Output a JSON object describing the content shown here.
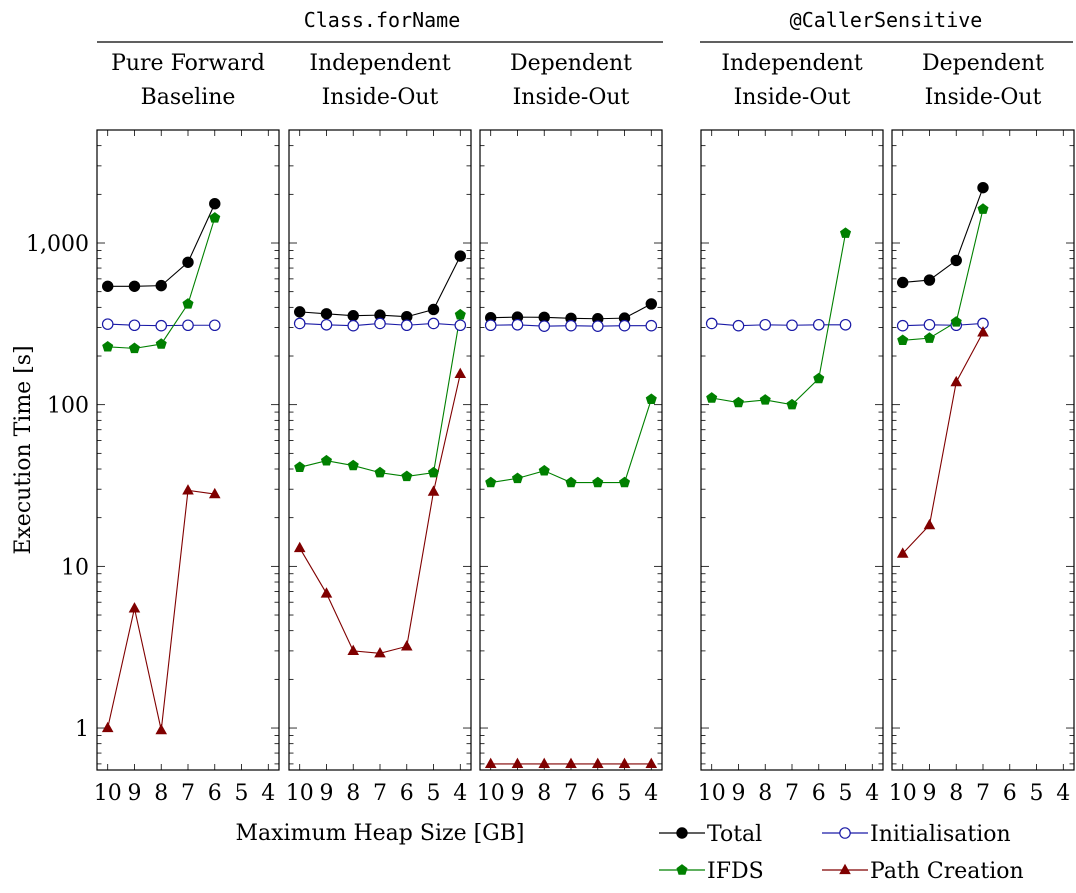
{
  "figure": {
    "ylabel": "Execution Time [s]",
    "xlabel": "Maximum Heap Size [GB]",
    "group_titles": [
      "Class.forName",
      "@CallerSensitive"
    ]
  },
  "legend": {
    "items": [
      {
        "name": "Total",
        "color": "#000000",
        "marker": "filled-circle"
      },
      {
        "name": "Initialisation",
        "color": "#1a1aa6",
        "marker": "open-circle"
      },
      {
        "name": "IFDS",
        "color": "#008000",
        "marker": "filled-pentagon"
      },
      {
        "name": "Path Creation",
        "color": "#800000",
        "marker": "filled-triangle"
      }
    ]
  },
  "chart_data": {
    "type": "line",
    "yscale": "log",
    "ylim": [
      0.55,
      5000
    ],
    "yticks": [
      1,
      10,
      100,
      1000
    ],
    "ytick_labels": [
      "1",
      "10",
      "100",
      "1,000"
    ],
    "x_ticks": [
      10,
      9,
      8,
      7,
      6,
      5,
      4
    ],
    "x_tick_labels": [
      "10",
      "9",
      "8",
      "7",
      "6",
      "5",
      "4"
    ],
    "xlim": [
      10.4,
      3.6
    ],
    "panels": [
      {
        "group": "Class.forName",
        "title_lines": [
          "Pure Forward",
          "Baseline"
        ],
        "series": [
          {
            "name": "Total",
            "x": [
              10,
              9,
              8,
              7,
              6
            ],
            "y": [
              540,
              540,
              545,
              760,
              1750
            ]
          },
          {
            "name": "Initialisation",
            "x": [
              10,
              9,
              8,
              7,
              6
            ],
            "y": [
              315,
              310,
              308,
              310,
              310
            ]
          },
          {
            "name": "IFDS",
            "x": [
              10,
              9,
              8,
              7,
              6
            ],
            "y": [
              228,
              223,
              237,
              420,
              1430
            ]
          },
          {
            "name": "Path Creation",
            "x": [
              10,
              9,
              8,
              7,
              6
            ],
            "y": [
              1.0,
              5.5,
              0.97,
              29.5,
              28
            ]
          }
        ]
      },
      {
        "group": "Class.forName",
        "title_lines": [
          "Independent",
          "Inside-Out"
        ],
        "series": [
          {
            "name": "Total",
            "x": [
              10,
              9,
              8,
              7,
              6,
              5,
              4
            ],
            "y": [
              375,
              365,
              355,
              358,
              350,
              388,
              830
            ]
          },
          {
            "name": "Initialisation",
            "x": [
              10,
              9,
              8,
              7,
              6,
              5,
              4
            ],
            "y": [
              318,
              312,
              308,
              318,
              310,
              318,
              310
            ]
          },
          {
            "name": "IFDS",
            "x": [
              10,
              9,
              8,
              7,
              6,
              5,
              4
            ],
            "y": [
              41,
              45,
              42,
              38,
              36,
              38,
              360
            ]
          },
          {
            "name": "Path Creation",
            "x": [
              10,
              9,
              8,
              7,
              6,
              5,
              4
            ],
            "y": [
              13,
              6.8,
              3.0,
              2.9,
              3.2,
              29,
              155
            ]
          }
        ]
      },
      {
        "group": "Class.forName",
        "title_lines": [
          "Dependent",
          "Inside-Out"
        ],
        "series": [
          {
            "name": "Total",
            "x": [
              10,
              9,
              8,
              7,
              6,
              5,
              4
            ],
            "y": [
              345,
              348,
              347,
              342,
              340,
              343,
              420
            ]
          },
          {
            "name": "Initialisation",
            "x": [
              10,
              9,
              8,
              7,
              6,
              5,
              4
            ],
            "y": [
              310,
              312,
              306,
              308,
              306,
              308,
              308
            ]
          },
          {
            "name": "IFDS",
            "x": [
              10,
              9,
              8,
              7,
              6,
              5,
              4
            ],
            "y": [
              33,
              35,
              39,
              33,
              33,
              33,
              108
            ]
          },
          {
            "name": "Path Creation",
            "x": [
              10,
              9,
              8,
              7,
              6,
              5,
              4
            ],
            "y": [
              0.6,
              0.6,
              0.6,
              0.6,
              0.6,
              0.6,
              0.6
            ]
          }
        ]
      },
      {
        "group": "@CallerSensitive",
        "title_lines": [
          "Independent",
          "Inside-Out"
        ],
        "series": [
          {
            "name": "Initialisation",
            "x": [
              10,
              9,
              8,
              7,
              6,
              5
            ],
            "y": [
              318,
              308,
              312,
              310,
              312,
              312
            ]
          },
          {
            "name": "IFDS",
            "x": [
              10,
              9,
              8,
              7,
              6,
              5
            ],
            "y": [
              110,
              103,
              107,
              100,
              145,
              1150
            ]
          }
        ]
      },
      {
        "group": "@CallerSensitive",
        "title_lines": [
          "Dependent",
          "Inside-Out"
        ],
        "series": [
          {
            "name": "Total",
            "x": [
              10,
              9,
              8,
              7
            ],
            "y": [
              570,
              590,
              780,
              2200
            ]
          },
          {
            "name": "Initialisation",
            "x": [
              10,
              9,
              8,
              7
            ],
            "y": [
              308,
              312,
              310,
              318
            ]
          },
          {
            "name": "IFDS",
            "x": [
              10,
              9,
              8,
              7
            ],
            "y": [
              250,
              258,
              325,
              1620
            ]
          },
          {
            "name": "Path Creation",
            "x": [
              10,
              9,
              8,
              7
            ],
            "y": [
              12,
              18,
              138,
              280
            ]
          }
        ]
      }
    ]
  }
}
